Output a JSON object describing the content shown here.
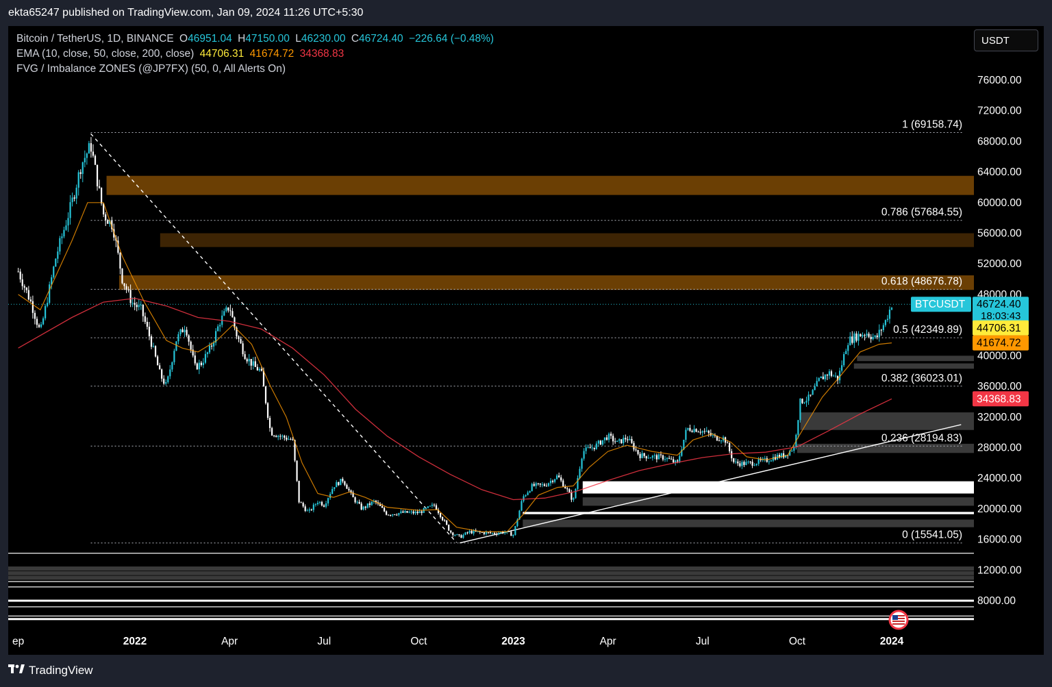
{
  "header": {
    "published": "ekta65247 published on TradingView.com, Jan 09, 2024 11:26 UTC+5:30"
  },
  "footer": {
    "brand": "TradingView"
  },
  "legend": {
    "symbol": "Bitcoin / TetherUS, 1D, BINANCE",
    "o_label": "O",
    "o": "46951.04",
    "h_label": "H",
    "h": "47150.00",
    "l_label": "L",
    "l": "46230.00",
    "c_label": "C",
    "c": "46724.40",
    "change": "−226.64 (−0.48%)",
    "ema_label": "EMA (10, close, 50, close, 200, close)",
    "ema10": "44706.31",
    "ema50": "41674.72",
    "ema200": "34368.83",
    "fvg_label": "FVG / Imbalance ZONES (@JP7FX) (50, 0, All Alerts On)"
  },
  "currency_button": "USDT",
  "colors": {
    "up": "#26c6da",
    "down": "#ffffff",
    "ema10": "#ff9800",
    "ema200": "#f23645",
    "fvg": "#7a4a04",
    "badge": "#26c6da"
  },
  "chart_data": {
    "type": "candlestick",
    "title": "Bitcoin / TetherUS, 1D, BINANCE",
    "ylim": [
      4000,
      80000
    ],
    "y_ticks": [
      "76000.00",
      "72000.00",
      "68000.00",
      "64000.00",
      "60000.00",
      "56000.00",
      "52000.00",
      "48000.00",
      "40000.00",
      "36000.00",
      "32000.00",
      "28000.00",
      "24000.00",
      "20000.00",
      "16000.00",
      "12000.00",
      "8000.00"
    ],
    "x_ticks": [
      {
        "label": "ep",
        "month": 0.3
      },
      {
        "label": "2022",
        "month": 4.0,
        "bold": true
      },
      {
        "label": "Apr",
        "month": 7.0
      },
      {
        "label": "Jul",
        "month": 10.0
      },
      {
        "label": "Oct",
        "month": 13.0
      },
      {
        "label": "2023",
        "month": 16.0,
        "bold": true
      },
      {
        "label": "Apr",
        "month": 19.0
      },
      {
        "label": "Jul",
        "month": 22.0
      },
      {
        "label": "Oct",
        "month": 25.0
      },
      {
        "label": "2024",
        "month": 28.0,
        "bold": true
      }
    ],
    "price_path": [
      [
        0.3,
        51000
      ],
      [
        0.7,
        47000
      ],
      [
        1.0,
        43000
      ],
      [
        1.5,
        53000
      ],
      [
        2.0,
        60000
      ],
      [
        2.3,
        65000
      ],
      [
        2.6,
        67500
      ],
      [
        2.8,
        63000
      ],
      [
        3.0,
        58500
      ],
      [
        3.3,
        57000
      ],
      [
        3.6,
        50000
      ],
      [
        3.9,
        47000
      ],
      [
        4.2,
        46000
      ],
      [
        4.5,
        42000
      ],
      [
        4.8,
        37500
      ],
      [
        5.0,
        36000
      ],
      [
        5.3,
        42000
      ],
      [
        5.6,
        44000
      ],
      [
        5.9,
        38500
      ],
      [
        6.1,
        39000
      ],
      [
        6.4,
        41000
      ],
      [
        6.7,
        44500
      ],
      [
        7.0,
        46500
      ],
      [
        7.2,
        43000
      ],
      [
        7.5,
        40000
      ],
      [
        7.8,
        38500
      ],
      [
        8.0,
        38000
      ],
      [
        8.3,
        30000
      ],
      [
        8.6,
        29500
      ],
      [
        9.0,
        29000
      ],
      [
        9.2,
        21000
      ],
      [
        9.5,
        19500
      ],
      [
        9.8,
        21000
      ],
      [
        10.0,
        20500
      ],
      [
        10.3,
        23000
      ],
      [
        10.6,
        23800
      ],
      [
        10.9,
        21500
      ],
      [
        11.2,
        20000
      ],
      [
        11.6,
        21000
      ],
      [
        12.0,
        19300
      ],
      [
        12.5,
        19500
      ],
      [
        13.0,
        19500
      ],
      [
        13.5,
        20500
      ],
      [
        14.0,
        17000
      ],
      [
        14.3,
        16300
      ],
      [
        14.6,
        17000
      ],
      [
        15.0,
        16900
      ],
      [
        15.4,
        16800
      ],
      [
        15.7,
        17000
      ],
      [
        16.0,
        16600
      ],
      [
        16.3,
        21500
      ],
      [
        16.6,
        23000
      ],
      [
        17.0,
        23100
      ],
      [
        17.4,
        24300
      ],
      [
        17.7,
        22500
      ],
      [
        17.9,
        21000
      ],
      [
        18.2,
        27500
      ],
      [
        18.6,
        28200
      ],
      [
        19.0,
        29500
      ],
      [
        19.3,
        28600
      ],
      [
        19.6,
        29300
      ],
      [
        20.0,
        27000
      ],
      [
        20.4,
        26800
      ],
      [
        20.8,
        26700
      ],
      [
        21.2,
        25900
      ],
      [
        21.5,
        30500
      ],
      [
        21.8,
        30400
      ],
      [
        22.1,
        30000
      ],
      [
        22.4,
        29300
      ],
      [
        22.7,
        29200
      ],
      [
        23.0,
        26000
      ],
      [
        23.3,
        25900
      ],
      [
        23.6,
        26000
      ],
      [
        24.0,
        26300
      ],
      [
        24.3,
        26800
      ],
      [
        24.6,
        27000
      ],
      [
        24.9,
        28000
      ],
      [
        25.1,
        34000
      ],
      [
        25.4,
        34500
      ],
      [
        25.7,
        36800
      ],
      [
        26.0,
        37800
      ],
      [
        26.3,
        37000
      ],
      [
        26.6,
        41900
      ],
      [
        26.9,
        42600
      ],
      [
        27.2,
        43000
      ],
      [
        27.5,
        42200
      ],
      [
        27.8,
        44500
      ],
      [
        28.0,
        46724
      ]
    ],
    "ema_fast_path": [
      [
        0.3,
        48000
      ],
      [
        1.0,
        46000
      ],
      [
        2.0,
        55000
      ],
      [
        2.5,
        60000
      ],
      [
        3.0,
        60000
      ],
      [
        3.6,
        53000
      ],
      [
        4.3,
        47000
      ],
      [
        5.0,
        42000
      ],
      [
        5.5,
        41000
      ],
      [
        6.0,
        40500
      ],
      [
        6.6,
        42000
      ],
      [
        7.1,
        44000
      ],
      [
        7.7,
        41500
      ],
      [
        8.3,
        36000
      ],
      [
        8.8,
        32000
      ],
      [
        9.3,
        26000
      ],
      [
        9.8,
        22000
      ],
      [
        10.3,
        21500
      ],
      [
        10.8,
        22200
      ],
      [
        11.3,
        21500
      ],
      [
        12.0,
        20200
      ],
      [
        13.0,
        19800
      ],
      [
        13.6,
        19900
      ],
      [
        14.2,
        17600
      ],
      [
        15.0,
        17000
      ],
      [
        15.8,
        17000
      ],
      [
        16.3,
        19200
      ],
      [
        16.8,
        21800
      ],
      [
        17.4,
        22800
      ],
      [
        17.9,
        23000
      ],
      [
        18.4,
        25400
      ],
      [
        19.0,
        27500
      ],
      [
        19.6,
        28300
      ],
      [
        20.4,
        27500
      ],
      [
        21.2,
        27000
      ],
      [
        21.7,
        29000
      ],
      [
        22.3,
        29800
      ],
      [
        22.9,
        28700
      ],
      [
        23.4,
        26800
      ],
      [
        24.0,
        26400
      ],
      [
        24.7,
        27000
      ],
      [
        25.2,
        30500
      ],
      [
        25.8,
        34600
      ],
      [
        26.4,
        37500
      ],
      [
        27.0,
        40500
      ],
      [
        27.6,
        41500
      ],
      [
        28.0,
        41674
      ]
    ],
    "ema_slow_path": [
      [
        0.3,
        41000
      ],
      [
        2.0,
        45000
      ],
      [
        3.0,
        47000
      ],
      [
        4.0,
        47500
      ],
      [
        5.0,
        46500
      ],
      [
        6.0,
        45000
      ],
      [
        7.0,
        44500
      ],
      [
        8.0,
        43500
      ],
      [
        9.0,
        41000
      ],
      [
        10.0,
        37500
      ],
      [
        11.0,
        33000
      ],
      [
        12.0,
        29500
      ],
      [
        13.0,
        26800
      ],
      [
        14.0,
        24500
      ],
      [
        15.0,
        22500
      ],
      [
        16.0,
        21200
      ],
      [
        17.0,
        21400
      ],
      [
        18.0,
        22300
      ],
      [
        19.0,
        23700
      ],
      [
        20.0,
        25000
      ],
      [
        21.0,
        25900
      ],
      [
        22.0,
        26700
      ],
      [
        23.0,
        27200
      ],
      [
        24.0,
        27400
      ],
      [
        25.0,
        28100
      ],
      [
        26.0,
        30200
      ],
      [
        27.0,
        32400
      ],
      [
        28.0,
        34368
      ]
    ],
    "fib_levels": [
      {
        "label": "1 (69158.74)",
        "value": 69158.74
      },
      {
        "label": "0.786 (57684.55)",
        "value": 57684.55
      },
      {
        "label": "0.618 (48676.78)",
        "value": 48676.78
      },
      {
        "label": "0.5 (42349.89)",
        "value": 42349.89
      },
      {
        "label": "0.382 (36023.01)",
        "value": 36023.01
      },
      {
        "label": "0.236 (28194.83)",
        "value": 28194.83
      },
      {
        "label": "0 (15541.05)",
        "value": 15541.05
      }
    ],
    "fvg_zones": [
      {
        "from": 61000,
        "to": 63500,
        "start": 3.1,
        "bright": 1.0
      },
      {
        "from": 54200,
        "to": 56000,
        "start": 4.8,
        "bright": 0.6
      },
      {
        "from": 48600,
        "to": 50500,
        "start": 3.5,
        "bright": 0.9
      }
    ],
    "support_zones": [
      {
        "from": 22000,
        "to": 23600,
        "start": 18.2,
        "strong": true
      },
      {
        "from": 19300,
        "to": 19600,
        "start": 16.3,
        "strong": true
      },
      {
        "from": 17600,
        "to": 18600,
        "start": 16.3,
        "strong": false
      },
      {
        "from": 20400,
        "to": 21500,
        "start": 18.2,
        "strong": false
      },
      {
        "from": 27300,
        "to": 28500,
        "start": 25.0,
        "strong": false
      },
      {
        "from": 30300,
        "to": 32600,
        "start": 25.1,
        "strong": false
      },
      {
        "from": 38300,
        "to": 39000,
        "start": 26.8,
        "strong": false
      },
      {
        "from": 39300,
        "to": 40000,
        "start": 26.9,
        "strong": false
      }
    ],
    "bottom_lines": [
      14200,
      12200,
      11600,
      11000,
      10500,
      9800,
      8000,
      7200,
      6000,
      5600
    ],
    "downtrend_line": {
      "from": [
        2.6,
        69000
      ],
      "to": [
        14.2,
        15600
      ]
    },
    "uptrend_line": {
      "from": [
        14.3,
        15541
      ],
      "to": [
        30.2,
        31000
      ]
    },
    "current_price_line": 46724.4,
    "price_labels": [
      {
        "text": "BTCUSDT",
        "value": 46724.4,
        "kind": "ticker"
      },
      {
        "text": "46724.40",
        "sub": "18:03:43",
        "value": 46724.4,
        "kind": "price"
      },
      {
        "text": "44706.31",
        "value": 44706.31,
        "kind": "ema10"
      },
      {
        "text": "41674.72",
        "value": 41674.72,
        "kind": "ema50"
      },
      {
        "text": "34368.83",
        "value": 34368.83,
        "kind": "ema200"
      }
    ]
  }
}
